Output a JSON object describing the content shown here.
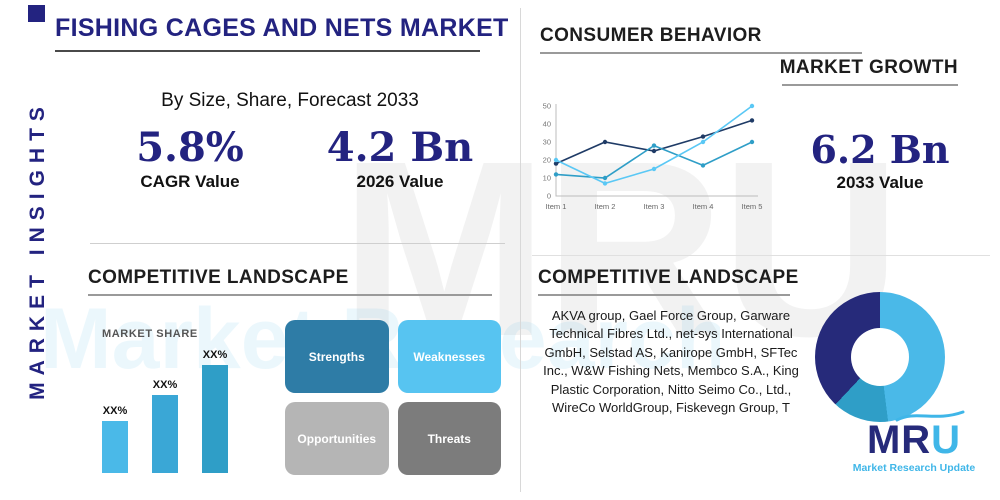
{
  "colors": {
    "navy": "#262a7a",
    "title_navy": "#232380",
    "light_blue": "#3fb6e8",
    "teal": "#2f9ec7",
    "steel_blue": "#2e7ca6",
    "gray_light": "#b5b5b5",
    "gray_dark": "#7c7c7c"
  },
  "sidebar": {
    "vertical_title": "MARKET INSIGHTS"
  },
  "header": {
    "title": "FISHING CAGES AND NETS MARKET",
    "subtitle": "By Size, Share, Forecast 2033"
  },
  "stats": {
    "cagr": {
      "value": "5.8%",
      "label": "CAGR Value"
    },
    "value_2026": {
      "value": "4.2 Bn",
      "label": "2026 Value"
    },
    "value_2033": {
      "value": "6.2 Bn",
      "label": "2033 Value"
    }
  },
  "right_top": {
    "heading_primary": "CONSUMER BEHAVIOR",
    "heading_secondary": "MARKET GROWTH"
  },
  "competitive_left": {
    "heading": "COMPETITIVE LANDSCAPE",
    "market_share_label": "MARKET SHARE",
    "swot": {
      "cells": [
        {
          "label": "Strengths",
          "color": "#2e7ca6"
        },
        {
          "label": "Weaknesses",
          "color": "#57c4f1"
        },
        {
          "label": "Opportunities",
          "color": "#b5b5b5"
        },
        {
          "label": "Threats",
          "color": "#7c7c7c"
        }
      ]
    }
  },
  "competitive_right": {
    "heading": "COMPETITIVE LANDSCAPE",
    "companies": "AKVA group, Gael Force Group, Garware Technical Fibres Ltd., net-sys International GmbH, Selstad AS, Kanirope GmbH, SFTec Inc., W&W Fishing Nets, Membco S.A., King Plastic Corporation, Nitto Seimo Co., Ltd., WireCo WorldGroup, Fiskevegn Group, T"
  },
  "logo": {
    "text": "MRU",
    "subtext": "Market Research Update"
  },
  "watermark": {
    "text": "MRU"
  },
  "chart_data": [
    {
      "type": "line",
      "title": "Market Growth",
      "x": [
        "Item 1",
        "Item 2",
        "Item 3",
        "Item 4",
        "Item 5"
      ],
      "ylim": [
        0,
        50
      ],
      "yticks": [
        0,
        10,
        20,
        30,
        40,
        50
      ],
      "legend": "none",
      "grid": false,
      "series": [
        {
          "name": "series-1",
          "color": "#1f3b66",
          "values": [
            18,
            30,
            25,
            33,
            42
          ]
        },
        {
          "name": "series-2",
          "color": "#2f9ec7",
          "values": [
            12,
            10,
            28,
            17,
            30
          ]
        },
        {
          "name": "series-3",
          "color": "#5ac8f5",
          "values": [
            20,
            7,
            15,
            30,
            50
          ]
        }
      ]
    },
    {
      "type": "bar",
      "title": "Market Share",
      "categories": [
        "XX%",
        "XX%",
        "XX%"
      ],
      "values": [
        30,
        45,
        62
      ],
      "bar_colors": [
        "#4ab9e8",
        "#3aa7d6",
        "#2f9ec7"
      ]
    },
    {
      "type": "pie",
      "title": "Competitive landscape donut",
      "segments": [
        {
          "color": "#4ab9e8",
          "pct": 48
        },
        {
          "color": "#2f9ec7",
          "pct": 14
        },
        {
          "color": "#262a7a",
          "pct": 38
        }
      ]
    }
  ]
}
